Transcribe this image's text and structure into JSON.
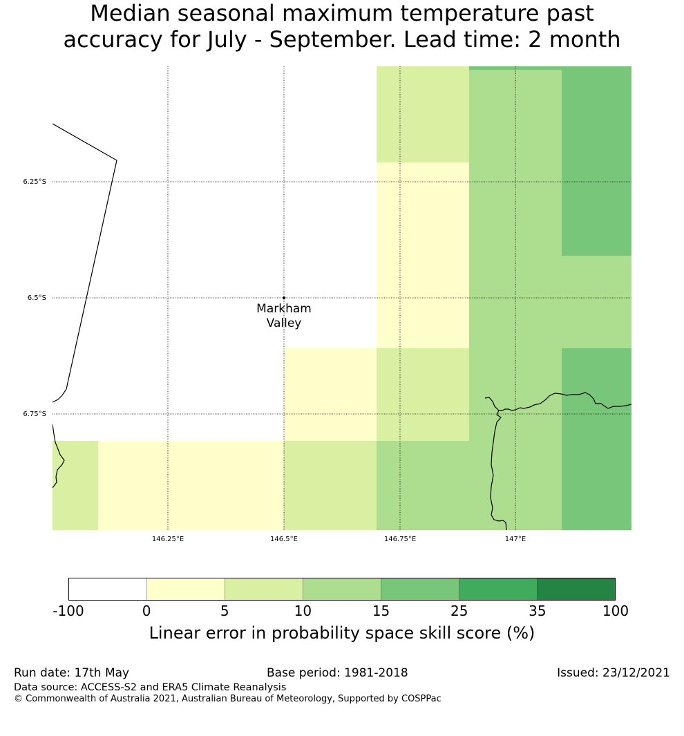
{
  "title": {
    "line1": "Median seasonal maximum temperature past",
    "line2": "accuracy for July - September. Lead time: 2 month"
  },
  "map": {
    "lat_labels": [
      "6.25°S",
      "6.5°S",
      "6.75°S"
    ],
    "lon_labels": [
      "146.25°E",
      "146.5°E",
      "146.75°E",
      "147°E"
    ],
    "place": {
      "name_line1": "Markham",
      "name_line2": "Valley"
    },
    "colors": {
      "0_5": "#ffffcc",
      "5_10": "#d9f0a3",
      "10_15": "#addd8e",
      "15_25": "#78c679",
      "25_35": "#41ab5d",
      "35_100": "#238443"
    }
  },
  "colorbar": {
    "label": "Linear error in probability space skill score (%)",
    "ticks": [
      "-100",
      "0",
      "5",
      "10",
      "15",
      "25",
      "35",
      "100"
    ],
    "colors": [
      "#ffffff",
      "#ffffcc",
      "#d9f0a3",
      "#addd8e",
      "#78c679",
      "#41ab5d",
      "#238443"
    ]
  },
  "footer": {
    "run_date": "Run date: 17th May",
    "base_period": "Base period: 1981-2018",
    "issued": "Issued: 23/12/2021",
    "data_source": "Data source: ACCESS-S2 and ERA5 Climate Reanalysis",
    "copyright": "© Commonwealth of Australia 2021, Australian Bureau of Meteorology, Supported by COSPPac"
  }
}
